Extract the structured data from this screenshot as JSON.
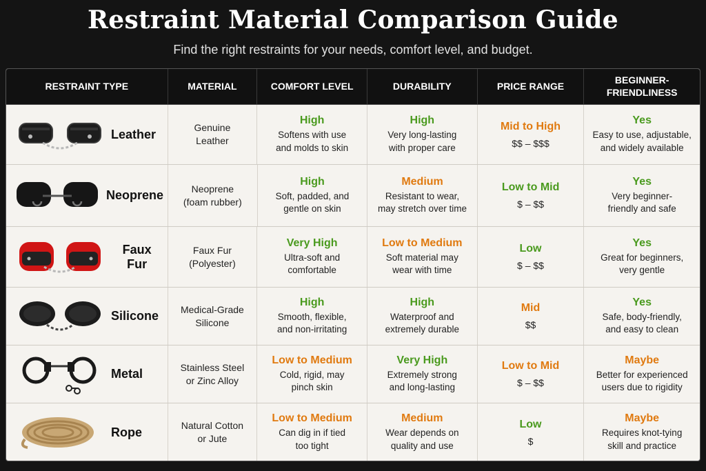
{
  "page": {
    "title": "Restraint Material Comparison Guide",
    "subtitle": "Find the right restraints for your needs, comfort level, and budget."
  },
  "colors": {
    "green": "#4a9a1e",
    "orange": "#e07a10"
  },
  "table": {
    "headers": [
      "RESTRAINT TYPE",
      "MATERIAL",
      "COMFORT LEVEL",
      "DURABILITY",
      "PRICE RANGE",
      "BEGINNER-FRIENDLINESS"
    ],
    "rows": [
      {
        "type": "Leather",
        "icon": "leather-cuffs-icon",
        "material": "Genuine\nLeather",
        "comfort": {
          "rating": "High",
          "color": "green",
          "desc": "Softens with use\nand molds to skin"
        },
        "durability": {
          "rating": "High",
          "color": "green",
          "desc": "Very long-lasting\nwith proper care"
        },
        "price": {
          "rating": "Mid to High",
          "color": "orange",
          "value": "$$ – $$$"
        },
        "beginner": {
          "rating": "Yes",
          "color": "green",
          "desc": "Easy to use, adjustable,\nand widely available"
        }
      },
      {
        "type": "Neoprene",
        "icon": "neoprene-cuffs-icon",
        "material": "Neoprene\n(foam rubber)",
        "comfort": {
          "rating": "High",
          "color": "green",
          "desc": "Soft, padded, and\ngentle on skin"
        },
        "durability": {
          "rating": "Medium",
          "color": "orange",
          "desc": "Resistant to wear,\nmay stretch over time"
        },
        "price": {
          "rating": "Low to Mid",
          "color": "green",
          "value": "$ – $$"
        },
        "beginner": {
          "rating": "Yes",
          "color": "green",
          "desc": "Very beginner-\nfriendly and safe"
        }
      },
      {
        "type": "Faux Fur",
        "icon": "faux-fur-cuffs-icon",
        "material": "Faux Fur\n(Polyester)",
        "comfort": {
          "rating": "Very High",
          "color": "green",
          "desc": "Ultra-soft and\ncomfortable"
        },
        "durability": {
          "rating": "Low to Medium",
          "color": "orange",
          "desc": "Soft material may\nwear with time"
        },
        "price": {
          "rating": "Low",
          "color": "green",
          "value": "$ – $$"
        },
        "beginner": {
          "rating": "Yes",
          "color": "green",
          "desc": "Great for beginners,\nvery gentle"
        }
      },
      {
        "type": "Silicone",
        "icon": "silicone-cuffs-icon",
        "material": "Medical-Grade\nSilicone",
        "comfort": {
          "rating": "High",
          "color": "green",
          "desc": "Smooth, flexible,\nand non-irritating"
        },
        "durability": {
          "rating": "High",
          "color": "green",
          "desc": "Waterproof and\nextremely durable"
        },
        "price": {
          "rating": "Mid",
          "color": "orange",
          "value": "$$"
        },
        "beginner": {
          "rating": "Yes",
          "color": "green",
          "desc": "Safe, body-friendly,\nand easy to clean"
        }
      },
      {
        "type": "Metal",
        "icon": "metal-handcuffs-icon",
        "material": "Stainless Steel\nor Zinc Alloy",
        "comfort": {
          "rating": "Low to Medium",
          "color": "orange",
          "desc": "Cold, rigid, may\npinch skin"
        },
        "durability": {
          "rating": "Very High",
          "color": "green",
          "desc": "Extremely strong\nand long-lasting"
        },
        "price": {
          "rating": "Low to Mid",
          "color": "orange",
          "value": "$ – $$"
        },
        "beginner": {
          "rating": "Maybe",
          "color": "orange",
          "desc": "Better for experienced\nusers due to rigidity"
        }
      },
      {
        "type": "Rope",
        "icon": "rope-coil-icon",
        "material": "Natural Cotton\nor Jute",
        "comfort": {
          "rating": "Low to Medium",
          "color": "orange",
          "desc": "Can dig in if tied\ntoo tight"
        },
        "durability": {
          "rating": "Medium",
          "color": "orange",
          "desc": "Wear depends on\nquality and use"
        },
        "price": {
          "rating": "Low",
          "color": "green",
          "value": "$"
        },
        "beginner": {
          "rating": "Maybe",
          "color": "orange",
          "desc": "Requires knot-tying\nskill and practice"
        }
      }
    ]
  }
}
